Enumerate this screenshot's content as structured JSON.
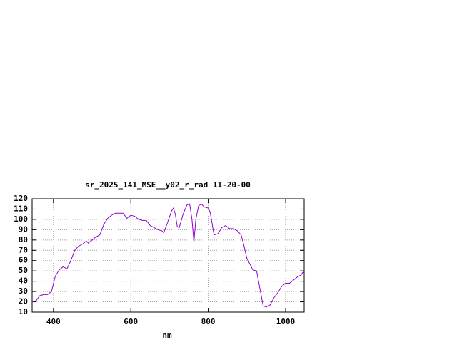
{
  "chart_data": {
    "type": "line",
    "title": "sr_2025_141_MSE__y02_r_rad 11-20-00",
    "x_label": "nm",
    "x": [
      345,
      355,
      365,
      375,
      385,
      395,
      405,
      415,
      425,
      435,
      445,
      455,
      465,
      475,
      485,
      490,
      500,
      510,
      520,
      530,
      540,
      550,
      560,
      570,
      580,
      590,
      600,
      610,
      620,
      630,
      640,
      650,
      660,
      670,
      680,
      685,
      695,
      705,
      710,
      715,
      720,
      725,
      735,
      745,
      752,
      758,
      763,
      768,
      775,
      782,
      790,
      800,
      805,
      810,
      815,
      825,
      835,
      845,
      855,
      865,
      875,
      885,
      892,
      900,
      910,
      915,
      925,
      935,
      942,
      950,
      960,
      970,
      980,
      990,
      1000,
      1010,
      1020,
      1030,
      1040,
      1045,
      1048
    ],
    "series": [
      {
        "color": "#9400d3",
        "values": [
          20,
          21,
          26,
          27,
          27,
          30,
          45,
          51,
          54,
          52,
          60,
          70,
          74,
          76,
          79,
          77,
          80,
          83,
          85,
          95,
          101,
          104,
          106,
          106,
          106,
          101,
          104,
          103,
          100,
          99,
          99,
          94,
          92,
          90,
          89,
          87,
          97,
          108,
          111,
          105,
          93,
          92,
          105,
          114,
          115,
          100,
          78,
          100,
          113,
          115,
          112,
          111,
          107,
          96,
          85,
          86,
          92,
          94,
          91,
          91,
          89,
          85,
          75,
          62,
          55,
          51,
          50,
          30,
          16,
          15,
          17,
          24,
          29,
          35,
          38,
          38,
          41,
          44,
          46,
          49,
          48
        ]
      }
    ],
    "xlim": [
      345,
      1048
    ],
    "xticks": [
      400,
      600,
      800,
      1000
    ],
    "ylim": [
      10,
      120
    ],
    "yticks": [
      10,
      20,
      30,
      40,
      50,
      60,
      70,
      80,
      90,
      100,
      110,
      120
    ],
    "grid": true
  }
}
